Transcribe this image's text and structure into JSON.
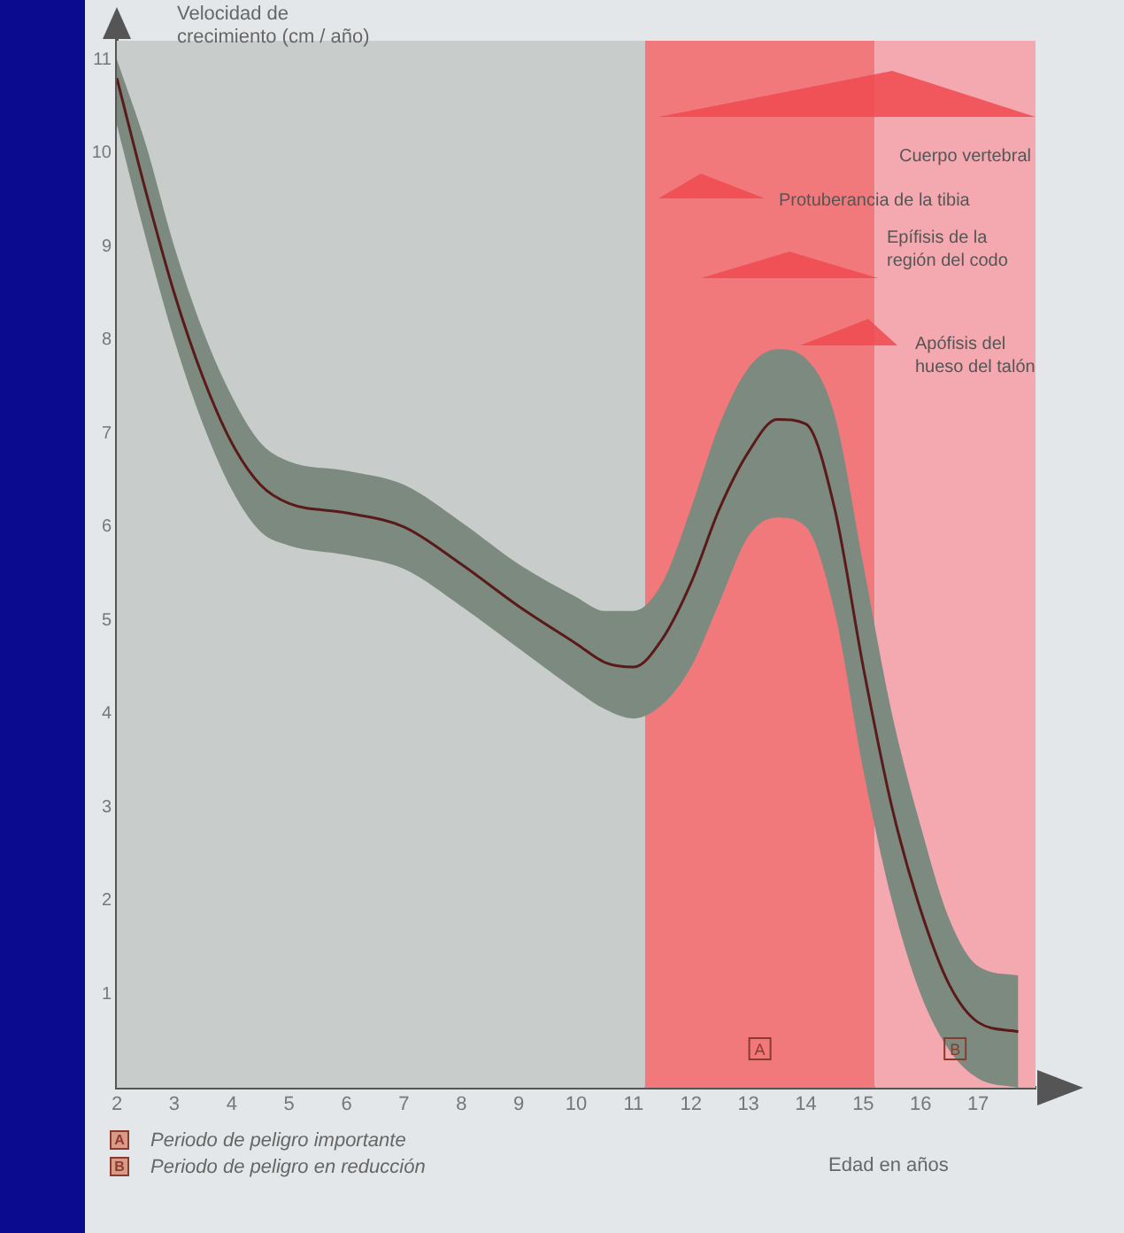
{
  "chart_data": {
    "type": "line",
    "ylabel": "Velocidad de crecimiento (cm / año)",
    "xlabel": "Edad en años",
    "x": [
      2,
      2.5,
      3,
      3.5,
      4,
      4.5,
      5,
      6,
      7,
      8,
      9,
      10,
      10.5,
      11,
      11.5,
      12,
      12.5,
      13,
      13.5,
      14,
      14.5,
      15,
      15.5,
      16,
      16.5,
      17,
      17.7
    ],
    "series": [
      {
        "color": "#5a1a1a",
        "values": [
          10.8,
          9.6,
          8.5,
          7.6,
          6.9,
          6.45,
          6.25,
          6.15,
          6.0,
          5.6,
          5.15,
          4.75,
          4.55,
          4.5,
          4.8,
          5.4,
          6.2,
          6.8,
          7.15,
          7.1,
          6.2,
          4.5,
          3.0,
          1.9,
          1.1,
          0.7,
          0.6
        ],
        "lower": [
          10.3,
          9.1,
          8.0,
          7.1,
          6.4,
          5.95,
          5.8,
          5.7,
          5.55,
          5.15,
          4.7,
          4.25,
          4.05,
          3.95,
          4.1,
          4.5,
          5.2,
          5.9,
          6.1,
          6.0,
          5.1,
          3.4,
          2.0,
          1.0,
          0.4,
          0.1,
          0.0
        ],
        "upper": [
          11.0,
          10.1,
          9.0,
          8.1,
          7.4,
          6.9,
          6.7,
          6.6,
          6.45,
          6.05,
          5.6,
          5.25,
          5.1,
          5.1,
          5.4,
          6.2,
          7.1,
          7.7,
          7.9,
          7.8,
          7.2,
          5.6,
          4.0,
          2.8,
          1.8,
          1.3,
          1.2
        ]
      }
    ],
    "bands": [
      {
        "axis": "x",
        "from": 2,
        "to": 11.2,
        "color": "#c8cccb"
      },
      {
        "axis": "x",
        "from": 11.2,
        "to": 15.2,
        "label": "A",
        "color": "#f2797b"
      },
      {
        "axis": "x",
        "from": 15.2,
        "to": 18,
        "label": "B",
        "color": "#f4a9b0"
      }
    ],
    "xlim": [
      2,
      18
    ],
    "xticks": [
      2,
      3,
      4,
      5,
      6,
      7,
      8,
      9,
      10,
      11,
      12,
      13,
      14,
      15,
      16,
      17
    ],
    "ylim": [
      0,
      11.2
    ],
    "yticks": [
      1,
      2,
      3,
      4,
      5,
      6,
      7,
      8,
      9,
      10,
      11
    ],
    "grid": false,
    "legend": false,
    "marker": "none",
    "line_style": "solid",
    "annotations": [
      "Cuerpo vertebral",
      "Protuberancia de la tibia",
      "Epífisis de la región del codo",
      "Apófisis del hueso del talón",
      "Periodo de peligro importante",
      "Periodo de peligro en reducción"
    ]
  }
}
